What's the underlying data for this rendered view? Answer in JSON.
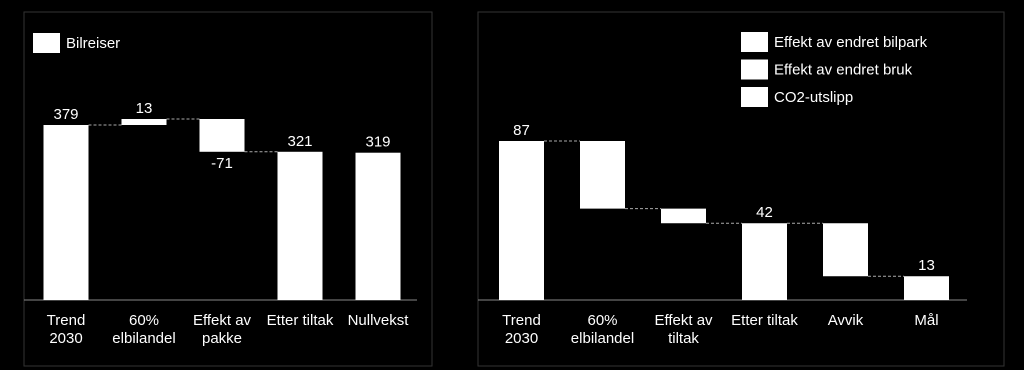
{
  "chart_data": [
    {
      "type": "waterfall",
      "categories": [
        "Trend 2030",
        "60% elbilandel",
        "Effekt av pakke",
        "Etter tiltak",
        "Nullvekst"
      ],
      "values": [
        379,
        13,
        -71,
        321,
        319
      ],
      "measures": [
        "absolute",
        "relative",
        "relative",
        "total",
        "absolute"
      ],
      "legend_entries": [
        {
          "name": "Bilreiser",
          "color": "#ffffff"
        }
      ],
      "color": "#ffffff"
    },
    {
      "type": "waterfall",
      "categories": [
        "Trend 2030",
        "60% elbilandel",
        "Effekt av tiltak",
        "Etter tiltak",
        "Avvik",
        "Mål"
      ],
      "values": [
        87,
        -37,
        -8,
        42,
        -29,
        13
      ],
      "value_labels": [
        "87",
        null,
        null,
        "42",
        null,
        "13"
      ],
      "measures": [
        "absolute",
        "relative",
        "relative",
        "total",
        "relative",
        "total"
      ],
      "legend_entries": [
        {
          "name": "Effekt av endret bilpark",
          "color": "#ffffff"
        },
        {
          "name": "Effekt av endret bruk",
          "color": "#ffffff"
        },
        {
          "name": "CO2-utslipp",
          "color": "#ffffff"
        }
      ],
      "color": "#ffffff"
    }
  ]
}
